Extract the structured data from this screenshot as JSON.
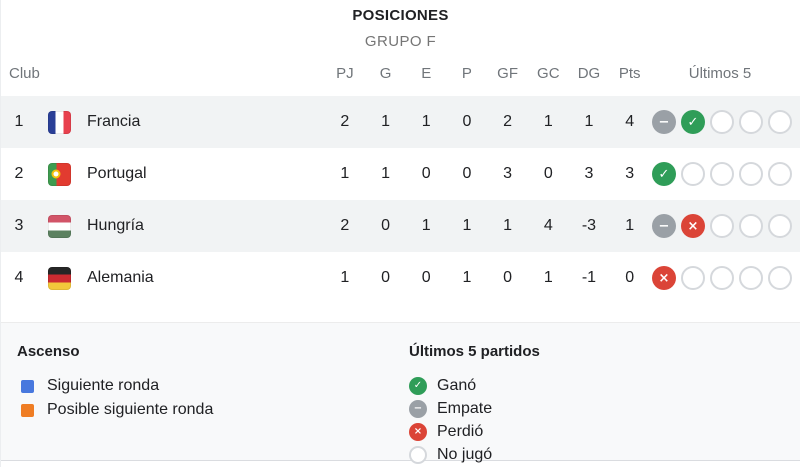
{
  "header": {
    "title": "POSICIONES",
    "subtitle": "GRUPO F"
  },
  "table": {
    "club_header": "Club",
    "stat_headers": [
      "PJ",
      "G",
      "E",
      "P",
      "GF",
      "GC",
      "DG",
      "Pts"
    ],
    "last5_header": "Últimos 5",
    "rows": [
      {
        "rank": "1",
        "club": "Francia",
        "flag": "france",
        "stats": [
          "2",
          "1",
          "1",
          "0",
          "2",
          "1",
          "1",
          "4"
        ],
        "last5": [
          "draw",
          "win",
          "none",
          "none",
          "none"
        ],
        "striped": true
      },
      {
        "rank": "2",
        "club": "Portugal",
        "flag": "portugal",
        "stats": [
          "1",
          "1",
          "0",
          "0",
          "3",
          "0",
          "3",
          "3"
        ],
        "last5": [
          "win",
          "none",
          "none",
          "none",
          "none"
        ],
        "striped": false
      },
      {
        "rank": "3",
        "club": "Hungría",
        "flag": "hungary",
        "stats": [
          "2",
          "0",
          "1",
          "1",
          "1",
          "4",
          "-3",
          "1"
        ],
        "last5": [
          "draw",
          "loss",
          "none",
          "none",
          "none"
        ],
        "striped": true
      },
      {
        "rank": "4",
        "club": "Alemania",
        "flag": "germany",
        "stats": [
          "1",
          "0",
          "0",
          "1",
          "0",
          "1",
          "-1",
          "0"
        ],
        "last5": [
          "loss",
          "none",
          "none",
          "none",
          "none"
        ],
        "striped": false
      }
    ]
  },
  "legend": {
    "promotion": {
      "title": "Ascenso",
      "items": [
        {
          "label": "Siguiente ronda",
          "color": "#4878DE"
        },
        {
          "label": "Posible siguiente ronda",
          "color": "#EF7D24"
        }
      ]
    },
    "last5": {
      "title": "Últimos 5 partidos",
      "items": [
        {
          "label": "Ganó",
          "type": "win"
        },
        {
          "label": "Empate",
          "type": "draw"
        },
        {
          "label": "Perdió",
          "type": "loss"
        },
        {
          "label": "No jugó",
          "type": "none"
        }
      ]
    }
  },
  "colors": {
    "win": "#2F9D58",
    "draw": "#9AA0A6",
    "loss": "#DB4437",
    "none-border": "#D5D8DC",
    "stripe": "#F1F3F4",
    "panel": "#F8F9FA"
  },
  "glyphs": {
    "win": "✓",
    "draw": "−",
    "loss": "×",
    "none": ""
  }
}
